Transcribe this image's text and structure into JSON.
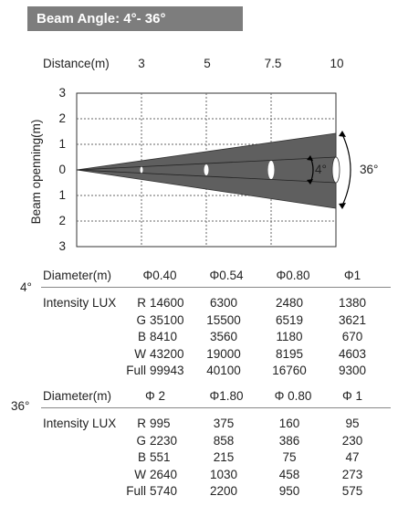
{
  "header": {
    "title": "Beam Angle: 4°- 36°"
  },
  "diagram": {
    "distance_label": "Distance(m)",
    "distances": [
      "3",
      "5",
      "7.5",
      "10"
    ],
    "y_label": "Beam openning(m)",
    "y_ticks": [
      "3",
      "2",
      "1",
      "0",
      "1",
      "2",
      "3"
    ],
    "narrow_angle": "4°",
    "wide_angle": "36°"
  },
  "table_4deg": {
    "angle": "4°",
    "diameter_label": "Diameter(m)",
    "diameters": [
      "Φ0.40",
      "Φ0.54",
      "Φ0.80",
      "Φ1"
    ],
    "intensity_label": "Intensity LUX",
    "rows": [
      {
        "color": "R",
        "values": [
          "14600",
          "6300",
          "2480",
          "1380"
        ]
      },
      {
        "color": "G",
        "values": [
          "35100",
          "15500",
          "6519",
          "3621"
        ]
      },
      {
        "color": "B",
        "values": [
          "8410",
          "3560",
          "1180",
          "670"
        ]
      },
      {
        "color": "W",
        "values": [
          "43200",
          "19000",
          "8195",
          "4603"
        ]
      },
      {
        "color": "Full",
        "values": [
          "99943",
          "40100",
          "16760",
          "9300"
        ]
      }
    ]
  },
  "table_36deg": {
    "angle": "36°",
    "diameter_label": "Diameter(m)",
    "diameters": [
      "Φ 2",
      "Φ1.80",
      "Φ 0.80",
      "Φ 1"
    ],
    "intensity_label": "Intensity LUX",
    "rows": [
      {
        "color": "R",
        "values": [
          "995",
          "375",
          "160",
          "95"
        ]
      },
      {
        "color": "G",
        "values": [
          "2230",
          "858",
          "386",
          "230"
        ]
      },
      {
        "color": "B",
        "values": [
          "551",
          "215",
          "75",
          "47"
        ]
      },
      {
        "color": "W",
        "values": [
          "2640",
          "1030",
          "458",
          "273"
        ]
      },
      {
        "color": "Full",
        "values": [
          "5740",
          "2200",
          "950",
          "575"
        ]
      }
    ]
  }
}
